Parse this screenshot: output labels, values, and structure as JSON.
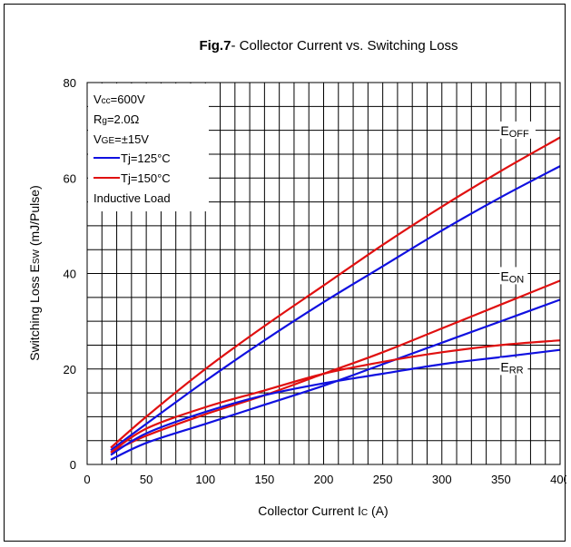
{
  "chart_data": {
    "type": "line",
    "title_bold": "Fig.7",
    "title_rest": "- Collector Current vs. Switching Loss",
    "xlabel": "Collector Current Ic  (A)",
    "ylabel": "Switching Loss Esw  (mJ/Pulse)",
    "xlim": [
      0,
      400
    ],
    "ylim": [
      0,
      80
    ],
    "xticks": [
      0,
      50,
      100,
      150,
      200,
      250,
      300,
      350,
      400
    ],
    "yticks": [
      0,
      20,
      40,
      60,
      80
    ],
    "grid": true,
    "conditions": [
      "Vcc=600V",
      "Rg=2.0Ω",
      "VGE=±15V",
      "Tj=125°C",
      "Tj=150°C",
      "Inductive Load"
    ],
    "colors": {
      "tj125": "#1010e0",
      "tj150": "#e01010"
    },
    "curve_labels": [
      {
        "text": "EOFF",
        "x": 355,
        "y": 69
      },
      {
        "text": "EON",
        "x": 355,
        "y": 38.5
      },
      {
        "text": "ERR",
        "x": 355,
        "y": 19.5
      }
    ],
    "series": [
      {
        "curve": "EOFF",
        "temp": "Tj=150°C",
        "color": "#e01010",
        "x": [
          20,
          50,
          100,
          150,
          200,
          250,
          300,
          350,
          400
        ],
        "y": [
          3.5,
          10,
          20,
          29,
          37.5,
          46,
          54,
          61.5,
          68.5
        ]
      },
      {
        "curve": "EOFF",
        "temp": "Tj=125°C",
        "color": "#1010e0",
        "x": [
          20,
          50,
          100,
          150,
          200,
          250,
          300,
          350,
          400
        ],
        "y": [
          3,
          8.5,
          17.5,
          26,
          34,
          41.5,
          49,
          56,
          62.5
        ]
      },
      {
        "curve": "EON",
        "temp": "Tj=150°C",
        "color": "#e01010",
        "x": [
          20,
          50,
          100,
          150,
          200,
          250,
          300,
          350,
          400
        ],
        "y": [
          2.5,
          6,
          10.5,
          14.5,
          19,
          23.5,
          28.5,
          33.5,
          38.5
        ]
      },
      {
        "curve": "EON",
        "temp": "Tj=125°C",
        "color": "#1010e0",
        "x": [
          20,
          50,
          100,
          150,
          200,
          250,
          300,
          350,
          400
        ],
        "y": [
          1,
          4.5,
          8.5,
          12.5,
          16.5,
          21,
          25.5,
          30,
          34.5
        ]
      },
      {
        "curve": "ERR",
        "temp": "Tj=150°C",
        "color": "#e01010",
        "x": [
          20,
          50,
          100,
          150,
          200,
          250,
          300,
          350,
          400
        ],
        "y": [
          2.5,
          7.5,
          12,
          15.5,
          19,
          21.5,
          23.5,
          25,
          26
        ]
      },
      {
        "curve": "ERR",
        "temp": "Tj=125°C",
        "color": "#1010e0",
        "x": [
          20,
          50,
          100,
          150,
          200,
          250,
          300,
          350,
          400
        ],
        "y": [
          2,
          6.5,
          11,
          14.5,
          17,
          19,
          21,
          22.5,
          24
        ]
      }
    ]
  }
}
